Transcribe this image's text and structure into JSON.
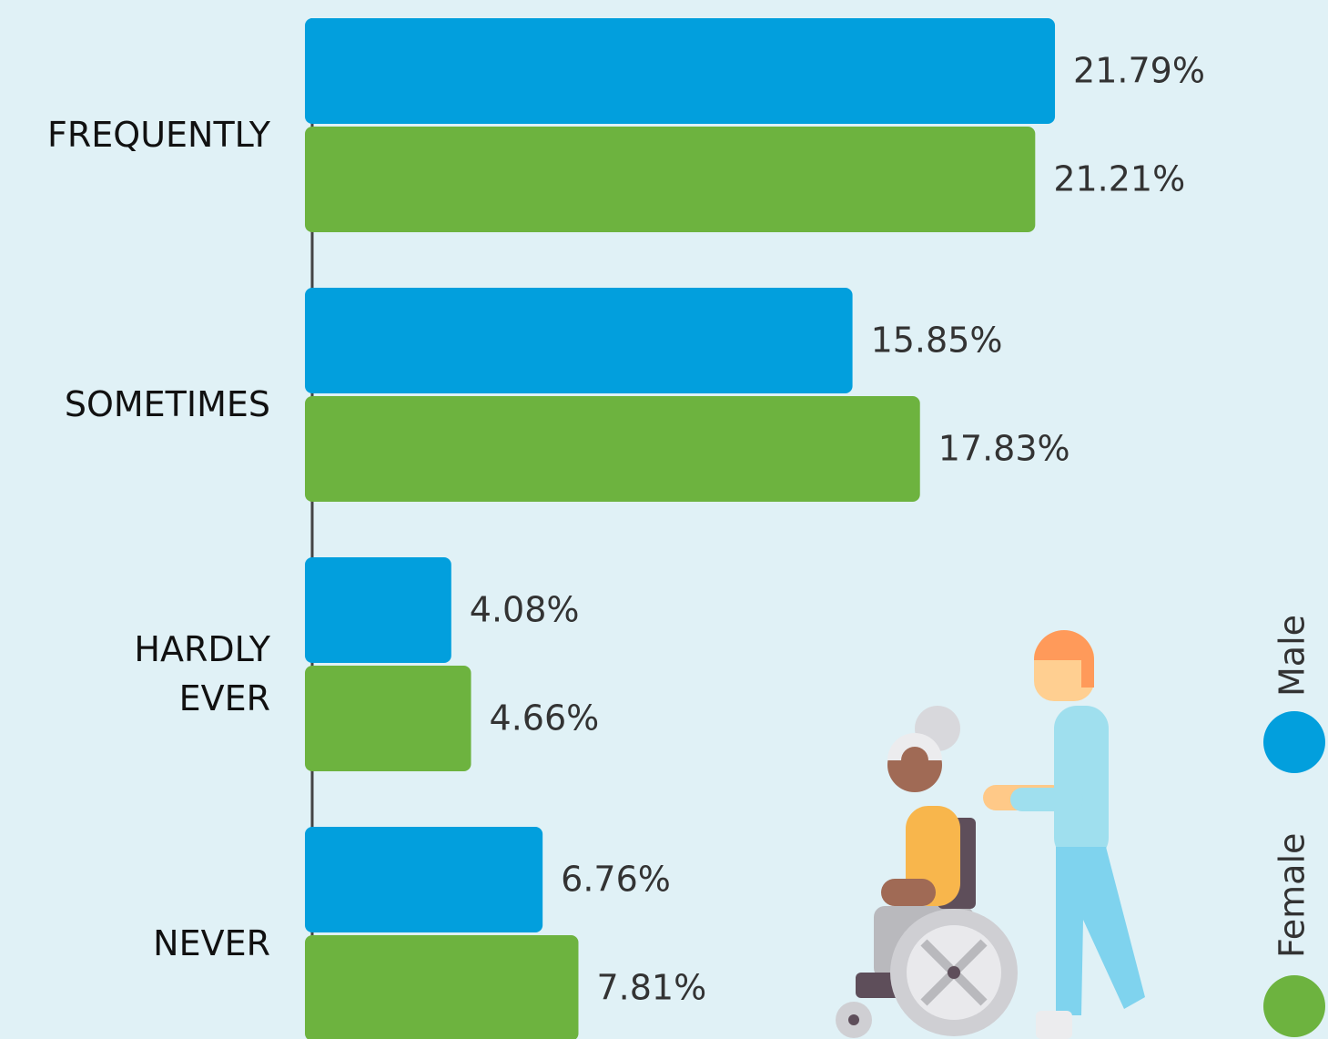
{
  "chart_data": {
    "type": "bar",
    "orientation": "horizontal",
    "categories": [
      "FREQUENTLY",
      "SOMETIMES",
      "HARDLY\nEVER",
      "NEVER"
    ],
    "series": [
      {
        "name": "Male",
        "color": "#029fdd",
        "values": [
          21.79,
          15.85,
          4.08,
          6.76
        ],
        "value_labels": [
          "21.79%",
          "15.85%",
          "4.08%",
          "6.76%"
        ]
      },
      {
        "name": "Female",
        "color": "#6db33f",
        "values": [
          21.21,
          17.83,
          4.66,
          7.81
        ],
        "value_labels": [
          "21.21%",
          "17.83%",
          "4.66%",
          "7.81%"
        ]
      }
    ]
  }
}
